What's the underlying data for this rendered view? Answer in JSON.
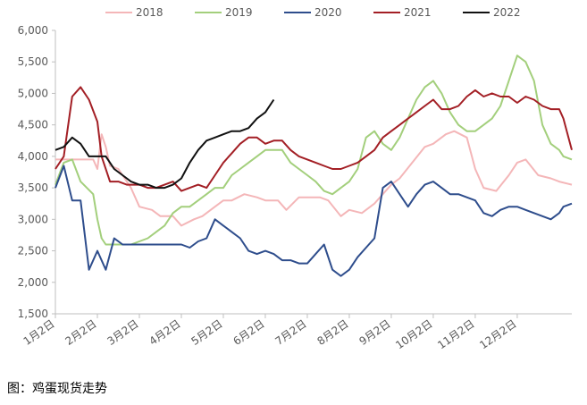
{
  "caption": "图：鸡蛋现货走势",
  "chart_data": {
    "type": "line",
    "title": "",
    "xlabel": "",
    "ylabel": "",
    "ylim": [
      1500,
      6000
    ],
    "yticks": [
      "1,500",
      "2,000",
      "2,500",
      "3,000",
      "3,500",
      "4,000",
      "4,500",
      "5,000",
      "5,500",
      "6,000"
    ],
    "ytick_values": [
      1500,
      2000,
      2500,
      3000,
      3500,
      4000,
      4500,
      5000,
      5500,
      6000
    ],
    "xlim": [
      0,
      12.3
    ],
    "xticks": [
      "1月2日",
      "2月2日",
      "3月2日",
      "4月2日",
      "5月2日",
      "6月2日",
      "7月2日",
      "8月2日",
      "9月2日",
      "10月2日",
      "11月2日",
      "12月2日"
    ],
    "x_unit": "month",
    "grid": false,
    "legend": "top",
    "series": [
      {
        "name": "2018",
        "color": "#f4b6b8",
        "x": [
          0,
          0.4,
          0.6,
          0.9,
          1.0,
          1.1,
          1.2,
          1.3,
          1.5,
          1.8,
          2.0,
          2.3,
          2.5,
          2.8,
          3.0,
          3.3,
          3.5,
          3.8,
          4.0,
          4.2,
          4.5,
          4.8,
          5.0,
          5.3,
          5.5,
          5.8,
          6.0,
          6.3,
          6.5,
          6.8,
          7.0,
          7.3,
          7.6,
          8.0,
          8.2,
          8.5,
          8.8,
          9.0,
          9.3,
          9.5,
          9.8,
          10.0,
          10.2,
          10.5,
          10.8,
          11.0,
          11.2,
          11.5,
          11.8,
          12.0,
          12.3
        ],
        "values": [
          3950,
          3950,
          3950,
          3950,
          3800,
          4350,
          4150,
          3850,
          3800,
          3500,
          3200,
          3150,
          3050,
          3050,
          2900,
          3000,
          3050,
          3200,
          3300,
          3300,
          3400,
          3350,
          3300,
          3300,
          3150,
          3350,
          3350,
          3350,
          3300,
          3050,
          3150,
          3100,
          3250,
          3550,
          3650,
          3900,
          4150,
          4200,
          4350,
          4400,
          4300,
          3800,
          3500,
          3450,
          3700,
          3900,
          3950,
          3700,
          3650,
          3600,
          3550
        ]
      },
      {
        "name": "2019",
        "color": "#a3cf7c",
        "x": [
          0,
          0.2,
          0.4,
          0.6,
          0.9,
          1.0,
          1.1,
          1.2,
          1.4,
          1.8,
          2.0,
          2.2,
          2.4,
          2.6,
          2.8,
          3.0,
          3.2,
          3.4,
          3.6,
          3.8,
          4.0,
          4.2,
          4.4,
          4.6,
          4.8,
          5.0,
          5.2,
          5.4,
          5.6,
          5.8,
          6.0,
          6.2,
          6.4,
          6.6,
          6.8,
          7.0,
          7.2,
          7.4,
          7.6,
          7.8,
          8.0,
          8.2,
          8.4,
          8.6,
          8.8,
          9.0,
          9.2,
          9.4,
          9.6,
          9.8,
          10.0,
          10.2,
          10.4,
          10.6,
          10.8,
          11.0,
          11.2,
          11.4,
          11.6,
          11.8,
          12.0,
          12.1,
          12.3
        ],
        "values": [
          3550,
          3900,
          3950,
          3600,
          3400,
          3000,
          2700,
          2600,
          2600,
          2600,
          2650,
          2700,
          2800,
          2900,
          3100,
          3200,
          3200,
          3300,
          3400,
          3500,
          3500,
          3700,
          3800,
          3900,
          4000,
          4100,
          4100,
          4100,
          3900,
          3800,
          3700,
          3600,
          3450,
          3400,
          3500,
          3600,
          3800,
          4300,
          4400,
          4200,
          4100,
          4300,
          4600,
          4900,
          5100,
          5200,
          5000,
          4700,
          4500,
          4400,
          4400,
          4500,
          4600,
          4800,
          5200,
          5600,
          5500,
          5200,
          4500,
          4200,
          4100,
          4000,
          3950
        ]
      },
      {
        "name": "2020",
        "color": "#2e4d8c",
        "x": [
          0,
          0.2,
          0.4,
          0.6,
          0.8,
          1.0,
          1.2,
          1.4,
          1.6,
          1.8,
          2.0,
          2.2,
          2.4,
          2.6,
          2.8,
          3.0,
          3.2,
          3.4,
          3.6,
          3.8,
          4.0,
          4.2,
          4.4,
          4.6,
          4.8,
          5.0,
          5.2,
          5.4,
          5.6,
          5.8,
          6.0,
          6.2,
          6.4,
          6.6,
          6.8,
          7.0,
          7.2,
          7.4,
          7.6,
          7.8,
          8.0,
          8.2,
          8.4,
          8.6,
          8.8,
          9.0,
          9.2,
          9.4,
          9.6,
          9.8,
          10.0,
          10.2,
          10.4,
          10.6,
          10.8,
          11.0,
          11.2,
          11.4,
          11.6,
          11.8,
          12.0,
          12.1,
          12.3
        ],
        "values": [
          3500,
          3850,
          3300,
          3300,
          2200,
          2500,
          2200,
          2700,
          2600,
          2600,
          2600,
          2600,
          2600,
          2600,
          2600,
          2600,
          2550,
          2650,
          2700,
          3000,
          2900,
          2800,
          2700,
          2500,
          2450,
          2500,
          2450,
          2350,
          2350,
          2300,
          2300,
          2450,
          2600,
          2200,
          2100,
          2200,
          2400,
          2550,
          2700,
          3500,
          3600,
          3400,
          3200,
          3400,
          3550,
          3600,
          3500,
          3400,
          3400,
          3350,
          3300,
          3100,
          3050,
          3150,
          3200,
          3200,
          3150,
          3100,
          3050,
          3000,
          3100,
          3200,
          3250
        ]
      },
      {
        "name": "2021",
        "color": "#a31f25",
        "x": [
          0,
          0.2,
          0.4,
          0.6,
          0.8,
          1.0,
          1.1,
          1.3,
          1.5,
          1.7,
          1.9,
          2.0,
          2.2,
          2.4,
          2.6,
          2.8,
          3.0,
          3.2,
          3.4,
          3.6,
          3.8,
          4.0,
          4.2,
          4.4,
          4.6,
          4.8,
          5.0,
          5.2,
          5.4,
          5.6,
          5.8,
          6.0,
          6.2,
          6.4,
          6.6,
          6.8,
          7.0,
          7.2,
          7.4,
          7.6,
          7.8,
          8.0,
          8.2,
          8.4,
          8.6,
          8.8,
          9.0,
          9.2,
          9.4,
          9.6,
          9.8,
          10.0,
          10.2,
          10.4,
          10.6,
          10.8,
          11.0,
          11.2,
          11.4,
          11.6,
          11.8,
          12.0,
          12.1,
          12.3
        ],
        "values": [
          3800,
          4000,
          4950,
          5100,
          4900,
          4550,
          4000,
          3600,
          3600,
          3550,
          3550,
          3550,
          3500,
          3500,
          3550,
          3600,
          3450,
          3500,
          3550,
          3500,
          3700,
          3900,
          4050,
          4200,
          4300,
          4300,
          4200,
          4250,
          4250,
          4100,
          4000,
          3950,
          3900,
          3850,
          3800,
          3800,
          3850,
          3900,
          4000,
          4100,
          4300,
          4400,
          4500,
          4600,
          4700,
          4800,
          4900,
          4750,
          4750,
          4800,
          4950,
          5050,
          4950,
          5000,
          4950,
          4950,
          4850,
          4950,
          4900,
          4800,
          4750,
          4750,
          4600,
          4100
        ]
      },
      {
        "name": "2022",
        "color": "#111111",
        "x": [
          0,
          0.2,
          0.4,
          0.6,
          0.8,
          1.0,
          1.2,
          1.4,
          1.6,
          1.8,
          2.0,
          2.2,
          2.4,
          2.6,
          2.8,
          3.0,
          3.2,
          3.4,
          3.6,
          3.8,
          4.0,
          4.2,
          4.4,
          4.6,
          4.8,
          5.0,
          5.2
        ],
        "values": [
          4100,
          4150,
          4300,
          4200,
          4000,
          4000,
          4000,
          3800,
          3700,
          3600,
          3550,
          3550,
          3500,
          3500,
          3550,
          3650,
          3900,
          4100,
          4250,
          4300,
          4350,
          4400,
          4400,
          4450,
          4600,
          4700,
          4900
        ]
      }
    ]
  }
}
